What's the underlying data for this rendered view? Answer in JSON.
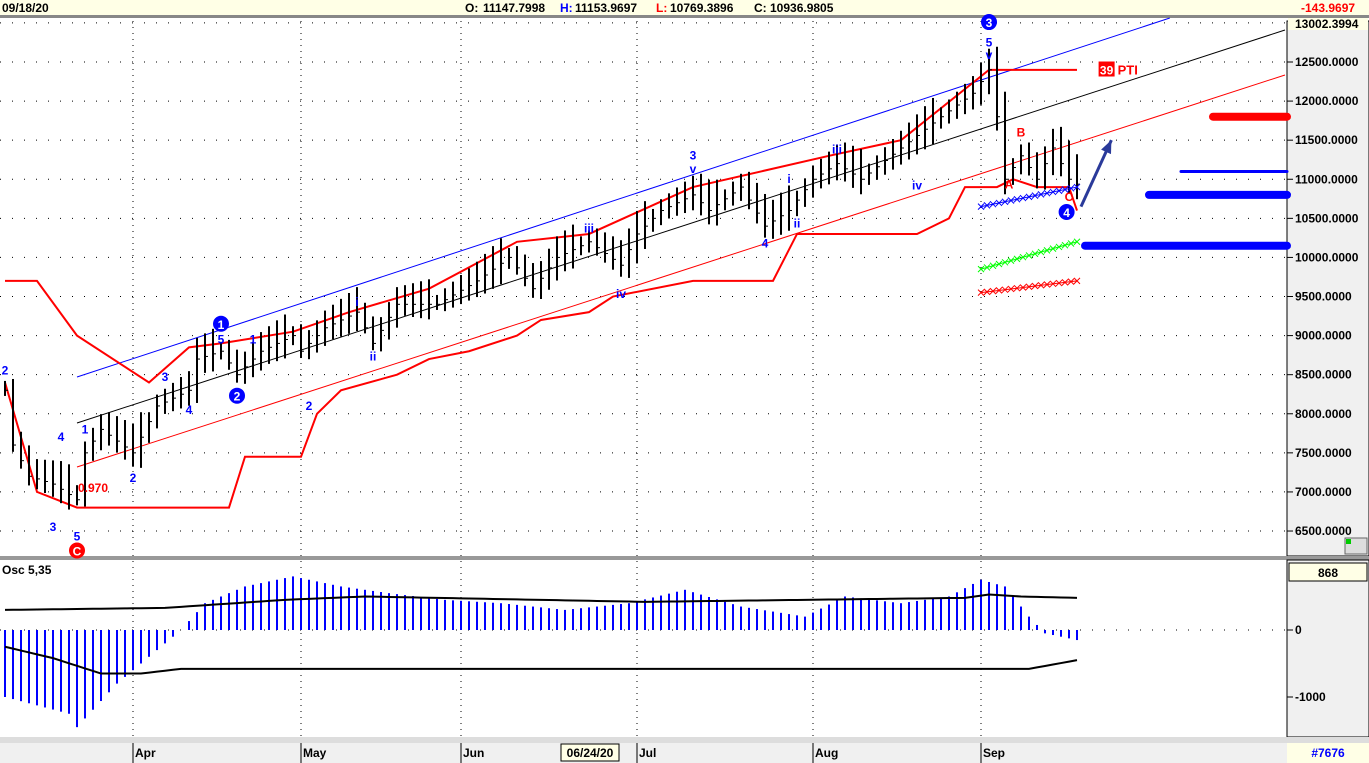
{
  "header": {
    "date": "09/18/20",
    "o_label": "O:",
    "o": "11147.7998",
    "h_label": "H:",
    "h": "11153.9697",
    "l_label": "L:",
    "l": "10769.3896",
    "c_label": "C:",
    "c": "10936.9805",
    "change": "-143.9697"
  },
  "price_axis": {
    "top_value": "13002.3994",
    "ticks": [
      "12500.0000",
      "12000.0000",
      "11500.0000",
      "11000.0000",
      "10500.0000",
      "10000.0000",
      "9500.0000",
      "9000.0000",
      "8500.0000",
      "8000.0000",
      "7500.0000",
      "7000.0000",
      "6500.0000"
    ]
  },
  "osc": {
    "title": "Osc 5,35",
    "value_box": "868",
    "ticks": [
      "0",
      "-1000"
    ]
  },
  "x_axis": {
    "months": [
      {
        "label": "Apr",
        "bar": 16
      },
      {
        "label": "May",
        "bar": 37
      },
      {
        "label": "Jun",
        "bar": 57
      },
      {
        "label": "Jul",
        "bar": 79
      },
      {
        "label": "Aug",
        "bar": 101
      },
      {
        "label": "Sep",
        "bar": 122
      }
    ],
    "cursor_date": "06/24/20"
  },
  "footer": {
    "id": "#7676"
  },
  "colors": {
    "red": "#ff0000",
    "blue": "#0000ff",
    "black": "#000000",
    "green": "#00ff00",
    "header_bg": "#ffffe6"
  },
  "chart_data": {
    "type": "bar",
    "ylim": [
      6200,
      13100
    ],
    "close_path": [
      [
        0,
        8300
      ],
      [
        1,
        7600
      ],
      [
        3,
        7200
      ],
      [
        6,
        7100
      ],
      [
        9,
        6900
      ],
      [
        10,
        7500
      ],
      [
        12,
        7800
      ],
      [
        16,
        7500
      ],
      [
        19,
        8100
      ],
      [
        23,
        8300
      ],
      [
        24,
        8700
      ],
      [
        27,
        8800
      ],
      [
        29,
        8500
      ],
      [
        32,
        8800
      ],
      [
        36,
        9000
      ],
      [
        37,
        8800
      ],
      [
        40,
        9100
      ],
      [
        44,
        9300
      ],
      [
        46,
        8900
      ],
      [
        49,
        9400
      ],
      [
        54,
        9400
      ],
      [
        59,
        9700
      ],
      [
        63,
        10000
      ],
      [
        66,
        9600
      ],
      [
        69,
        10000
      ],
      [
        73,
        10200
      ],
      [
        77,
        9900
      ],
      [
        79,
        10300
      ],
      [
        82,
        10600
      ],
      [
        86,
        10800
      ],
      [
        88,
        10600
      ],
      [
        92,
        10900
      ],
      [
        95,
        10400
      ],
      [
        98,
        10600
      ],
      [
        101,
        11000
      ],
      [
        104,
        11200
      ],
      [
        107,
        11000
      ],
      [
        112,
        11400
      ],
      [
        117,
        11800
      ],
      [
        121,
        12100
      ],
      [
        123,
        12400
      ],
      [
        124,
        11800
      ],
      [
        125,
        11000
      ],
      [
        127,
        11300
      ],
      [
        129,
        11000
      ],
      [
        131,
        11400
      ],
      [
        133,
        11000
      ],
      [
        134,
        10937
      ]
    ],
    "stop_upper": [
      [
        0,
        9700
      ],
      [
        4,
        9700
      ],
      [
        9,
        9000
      ],
      [
        18,
        8400
      ],
      [
        23,
        8850
      ],
      [
        27,
        8900
      ],
      [
        36,
        9050
      ],
      [
        43,
        9300
      ],
      [
        53,
        9600
      ],
      [
        64,
        10200
      ],
      [
        73,
        10300
      ],
      [
        86,
        10900
      ],
      [
        103,
        11300
      ],
      [
        112,
        11500
      ],
      [
        123,
        12400
      ],
      [
        134,
        12400
      ]
    ],
    "stop_lower": [
      [
        0,
        8400
      ],
      [
        4,
        7000
      ],
      [
        9,
        6800
      ],
      [
        28,
        6800
      ],
      [
        30,
        7450
      ],
      [
        37,
        7450
      ],
      [
        39,
        8000
      ],
      [
        42,
        8300
      ],
      [
        49,
        8500
      ],
      [
        53,
        8700
      ],
      [
        58,
        8800
      ],
      [
        64,
        9000
      ],
      [
        67,
        9200
      ],
      [
        73,
        9300
      ],
      [
        76,
        9500
      ],
      [
        86,
        9700
      ],
      [
        96,
        9700
      ],
      [
        99,
        10300
      ],
      [
        114,
        10300
      ],
      [
        118,
        10500
      ],
      [
        120,
        10900
      ],
      [
        124,
        10900
      ],
      [
        126,
        11000
      ],
      [
        129,
        10900
      ],
      [
        133,
        10900
      ],
      [
        134,
        10600
      ]
    ],
    "channels": [
      {
        "color": "blue",
        "from": [
          9,
          8470
        ],
        "to": [
          145.6,
          13063
        ]
      },
      {
        "color": "black",
        "from": [
          9,
          7882
        ],
        "to": [
          160,
          12909
        ]
      },
      {
        "color": "red",
        "from": [
          9,
          7319
        ],
        "to": [
          160,
          12334
        ]
      }
    ],
    "projection_lines": [
      {
        "color": "red",
        "price": 11800,
        "from_bar": 151,
        "thick": true
      },
      {
        "color": "blue",
        "price": 11100,
        "from_bar": 147,
        "thick": false
      },
      {
        "color": "blue",
        "price": 10800,
        "from_bar": 143,
        "thick": true
      },
      {
        "color": "blue",
        "price": 10150,
        "from_bar": 135,
        "thick": true
      }
    ],
    "x_lines": [
      {
        "color": "blue",
        "from": [
          122,
          10650
        ],
        "to": [
          134,
          10900
        ]
      },
      {
        "color": "green",
        "from": [
          122,
          9850
        ],
        "to": [
          134,
          10200
        ]
      },
      {
        "color": "red",
        "from": [
          122,
          9550
        ],
        "to": [
          134,
          9700
        ]
      }
    ],
    "wave_labels": [
      {
        "text": "2",
        "bar": 0,
        "price": 8500,
        "color": "blue"
      },
      {
        "text": "3",
        "bar": 6,
        "price": 6500,
        "color": "blue"
      },
      {
        "text": "4",
        "bar": 7,
        "price": 7650,
        "color": "blue"
      },
      {
        "text": "5",
        "bar": 9,
        "price": 6380,
        "color": "blue"
      },
      {
        "text": "C",
        "bar": 9,
        "price": 6200,
        "color": "red",
        "circle": true
      },
      {
        "text": "0.970",
        "bar": 9,
        "price": 7000,
        "color": "red",
        "small": true
      },
      {
        "text": "1",
        "bar": 10,
        "price": 7750,
        "color": "blue"
      },
      {
        "text": "2",
        "bar": 16,
        "price": 7130,
        "color": "blue"
      },
      {
        "text": "3",
        "bar": 20,
        "price": 8420,
        "color": "blue"
      },
      {
        "text": "4",
        "bar": 23,
        "price": 8000,
        "color": "blue"
      },
      {
        "text": "1",
        "bar": 27,
        "price": 9100,
        "color": "blue",
        "circle": true
      },
      {
        "text": "5",
        "bar": 27,
        "price": 8900,
        "color": "blue"
      },
      {
        "text": "2",
        "bar": 29,
        "price": 8180,
        "color": "blue",
        "circle": true
      },
      {
        "text": "1",
        "bar": 31,
        "price": 8900,
        "color": "blue"
      },
      {
        "text": "2",
        "bar": 38,
        "price": 8050,
        "color": "blue"
      },
      {
        "text": "i",
        "bar": 44,
        "price": 9380,
        "color": "blue"
      },
      {
        "text": "ii",
        "bar": 46,
        "price": 8680,
        "color": "blue"
      },
      {
        "text": "iii",
        "bar": 73,
        "price": 10320,
        "color": "blue"
      },
      {
        "text": "iv",
        "bar": 77,
        "price": 9480,
        "color": "blue"
      },
      {
        "text": "3",
        "bar": 86,
        "price": 11250,
        "color": "blue"
      },
      {
        "text": "v",
        "bar": 86,
        "price": 11080,
        "color": "blue"
      },
      {
        "text": "4",
        "bar": 95,
        "price": 10130,
        "color": "blue"
      },
      {
        "text": "i",
        "bar": 98,
        "price": 10950,
        "color": "blue"
      },
      {
        "text": "ii",
        "bar": 99,
        "price": 10380,
        "color": "blue"
      },
      {
        "text": "iii",
        "bar": 104,
        "price": 11330,
        "color": "blue"
      },
      {
        "text": "iv",
        "bar": 114,
        "price": 10870,
        "color": "blue"
      },
      {
        "text": "3",
        "bar": 123,
        "price": 12960,
        "color": "blue",
        "circle": true
      },
      {
        "text": "5",
        "bar": 123,
        "price": 12700,
        "color": "blue"
      },
      {
        "text": "v",
        "bar": 123,
        "price": 12540,
        "color": "blue"
      },
      {
        "text": "B",
        "bar": 127,
        "price": 11550,
        "color": "red"
      },
      {
        "text": "A",
        "bar": 125.5,
        "price": 10880,
        "color": "red"
      },
      {
        "text": "C",
        "bar": 133,
        "price": 10720,
        "color": "red"
      },
      {
        "text": "4",
        "bar": 132.7,
        "price": 10530,
        "color": "blue",
        "circle": true
      }
    ],
    "pti": {
      "count": "39",
      "label": "PTI"
    },
    "arrow": {
      "from": [
        134.5,
        10650
      ],
      "to": [
        138.3,
        11500
      ]
    },
    "oscillator": {
      "histogram": [
        [
          0,
          -1000
        ],
        [
          8,
          -1250
        ],
        [
          9,
          -1450
        ],
        [
          14,
          -800
        ],
        [
          18,
          -400
        ],
        [
          22,
          0
        ],
        [
          25,
          400
        ],
        [
          30,
          650
        ],
        [
          36,
          800
        ],
        [
          42,
          650
        ],
        [
          48,
          550
        ],
        [
          55,
          450
        ],
        [
          62,
          400
        ],
        [
          70,
          300
        ],
        [
          78,
          400
        ],
        [
          85,
          600
        ],
        [
          92,
          350
        ],
        [
          100,
          200
        ],
        [
          105,
          500
        ],
        [
          112,
          400
        ],
        [
          118,
          500
        ],
        [
          122,
          750
        ],
        [
          125,
          650
        ],
        [
          128,
          200
        ],
        [
          130,
          -50
        ],
        [
          134,
          -150
        ]
      ],
      "upper_line": [
        [
          0,
          300
        ],
        [
          20,
          330
        ],
        [
          35,
          450
        ],
        [
          45,
          500
        ],
        [
          80,
          420
        ],
        [
          100,
          450
        ],
        [
          120,
          480
        ],
        [
          123,
          530
        ],
        [
          127,
          500
        ],
        [
          134,
          480
        ]
      ],
      "lower_line": [
        [
          0,
          -250
        ],
        [
          6,
          -420
        ],
        [
          12,
          -650
        ],
        [
          17,
          -650
        ],
        [
          22,
          -580
        ],
        [
          128,
          -580
        ],
        [
          134,
          -450
        ]
      ]
    }
  }
}
